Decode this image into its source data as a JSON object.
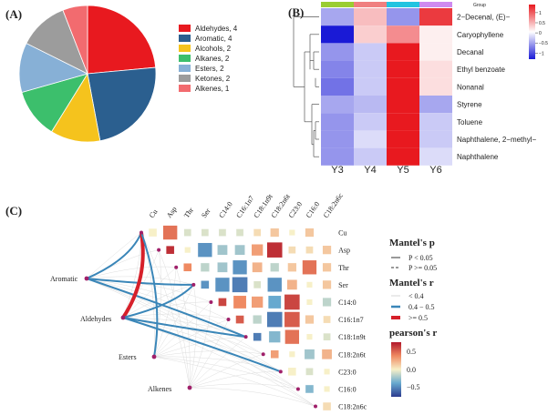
{
  "panels": {
    "A": "(A)",
    "B": "(B)",
    "C": "(C)"
  },
  "chart_data": [
    {
      "type": "pie",
      "panel": "A",
      "legend_position": "right",
      "slices": [
        {
          "name": "Aldehydes",
          "count": 4,
          "label": "Aldehydes, 4",
          "color": "#e8191f"
        },
        {
          "name": "Aromatic",
          "count": 4,
          "label": "Aromatic, 4",
          "color": "#2b5f8f"
        },
        {
          "name": "Alcohols",
          "count": 2,
          "label": "Alcohols, 2",
          "color": "#f5c31d"
        },
        {
          "name": "Alkanes",
          "count": 2,
          "label": "Alkanes, 2",
          "color": "#3cbf6c"
        },
        {
          "name": "Esters",
          "count": 2,
          "label": "Esters, 2",
          "color": "#87b0d6"
        },
        {
          "name": "Ketones",
          "count": 2,
          "label": "Ketones, 2",
          "color": "#9c9c9c"
        },
        {
          "name": "Alkenes",
          "count": 1,
          "label": "Alkenes, 1",
          "color": "#f26b6f"
        }
      ]
    },
    {
      "type": "heatmap",
      "panel": "B",
      "columns": [
        "Y3",
        "Y4",
        "Y5",
        "Y6"
      ],
      "rows": [
        "2−Decenal, (E)−",
        "Caryophyllene",
        "Decanal",
        "Ethyl benzoate",
        "Nonanal",
        "Styrene",
        "Toluene",
        "Naphthalene, 2−methyl−",
        "Naphthalene"
      ],
      "values": [
        [
          -0.5,
          0.4,
          -0.6,
          1.2
        ],
        [
          -1.3,
          0.3,
          0.7,
          0.1
        ],
        [
          -0.6,
          -0.3,
          1.4,
          0.1
        ],
        [
          -0.7,
          -0.3,
          1.4,
          0.2
        ],
        [
          -0.8,
          -0.3,
          1.4,
          0.2
        ],
        [
          -0.5,
          -0.4,
          1.4,
          -0.5
        ],
        [
          -0.6,
          -0.3,
          1.4,
          -0.3
        ],
        [
          -0.6,
          -0.2,
          1.4,
          -0.3
        ],
        [
          -0.6,
          -0.3,
          1.4,
          -0.2
        ]
      ],
      "group_label": "Group",
      "group_colors": [
        "#9acd32",
        "#f08080",
        "#22c4e0",
        "#cf8bf0"
      ],
      "colorbar": {
        "min": -1.3,
        "max": 1.4,
        "ticks": [
          1,
          0.5,
          0,
          -0.5,
          -1
        ],
        "tick_labels": [
          "1",
          "0.5",
          "0",
          "−0.5",
          "−1"
        ]
      }
    },
    {
      "type": "heatmap",
      "panel": "C",
      "variables": [
        "Cu",
        "Asp",
        "Thr",
        "Ser",
        "C14:0",
        "C16:1n7",
        "C18:1n9t",
        "C18:2n6t",
        "C23:0",
        "C16:0",
        "C18:2n6c"
      ],
      "correlations": [
        [
          0.0,
          0.6,
          -0.1,
          -0.1,
          -0.1,
          -0.1,
          0.1,
          0.2,
          0.0,
          0.2
        ],
        [
          0.9,
          0.0,
          -0.6,
          -0.3,
          -0.3,
          0.4,
          0.9,
          0.1,
          0.1,
          0.2
        ],
        [
          0.5,
          -0.2,
          -0.3,
          -0.6,
          0.3,
          -0.2,
          0.2,
          0.6,
          0.2
        ],
        [
          -0.6,
          -0.6,
          -0.7,
          -0.1,
          -0.6,
          0.3,
          0.0,
          0.2
        ],
        [
          0.8,
          0.5,
          0.4,
          -0.5,
          0.8,
          0.0,
          -0.2
        ],
        [
          0.7,
          -0.2,
          -0.7,
          0.7,
          0.2,
          0.1
        ],
        [
          -0.7,
          -0.4,
          0.6,
          0.0,
          -0.1
        ],
        [
          0.4,
          0.0,
          -0.3,
          0.3
        ],
        [
          0.0,
          -0.1,
          0.0
        ],
        [
          -0.4,
          0.0
        ],
        [
          0.1
        ]
      ],
      "sources": [
        "Aromatic",
        "Aldehydes",
        "Esters",
        "Alkenes"
      ],
      "mantel_links": [
        {
          "source": "Aromatic",
          "target": "Cu",
          "r": "0.4-0.5",
          "p": "<0.05"
        },
        {
          "source": "Aromatic",
          "target": "Ser",
          "r": "0.4-0.5",
          "p": "<0.05"
        },
        {
          "source": "Aromatic",
          "target": "C18:1n9t",
          "r": "0.4-0.5",
          "p": "<0.05"
        },
        {
          "source": "Aldehydes",
          "target": "Cu",
          "r": ">=0.5",
          "p": "<0.05"
        },
        {
          "source": "Aldehydes",
          "target": "Ser",
          "r": "0.4-0.5",
          "p": "<0.05"
        },
        {
          "source": "Aldehydes",
          "target": "C18:1n9t",
          "r": "0.4-0.5",
          "p": "<0.05"
        },
        {
          "source": "Aldehydes",
          "target": "C23:0",
          "r": "0.4-0.5",
          "p": "<0.05"
        },
        {
          "source": "Esters",
          "target": "Cu",
          "r": "0.4-0.5",
          "p": "<0.05"
        }
      ],
      "legend": {
        "p_title": "Mantel's p",
        "p_items": [
          "P < 0.05",
          "P >= 0.05"
        ],
        "r_title": "Mantel's r",
        "r_items": [
          "< 0.4",
          "0.4 − 0.5",
          ">= 0.5"
        ],
        "r_colors": [
          "#d6d6d6",
          "#3a86b8",
          "#d6202a"
        ],
        "pearson_title": "pearson's r",
        "pearson_ticks": [
          "0.5",
          "0.0",
          "−0.5"
        ]
      }
    }
  ]
}
